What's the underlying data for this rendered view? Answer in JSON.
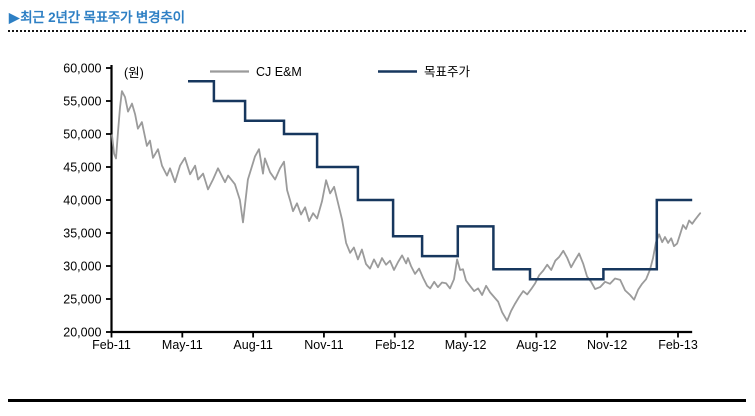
{
  "header": {
    "marker": "▶",
    "title": "최근 2년간 목표주가 변경추이"
  },
  "colors": {
    "title_blue": "#2d7fc4",
    "axis_black": "#000000",
    "price_gray": "#9b9b9b",
    "target_navy": "#17375e"
  },
  "chart_data": {
    "type": "line",
    "unit_label": "(원)",
    "ylim": [
      20000,
      60000
    ],
    "y_ticks": [
      20000,
      25000,
      30000,
      35000,
      40000,
      45000,
      50000,
      55000,
      60000
    ],
    "x_ticks": [
      0,
      3,
      6,
      9,
      12,
      15,
      18,
      21,
      24
    ],
    "x_tick_labels": [
      "Feb-11",
      "May-11",
      "Aug-11",
      "Nov-11",
      "Feb-12",
      "May-12",
      "Aug-12",
      "Nov-12",
      "Feb-13"
    ],
    "x_axis_end_month": 24.6,
    "grid": false,
    "legend_position": "top",
    "series": [
      {
        "name": "CJ E&M",
        "style": "line",
        "color": "#9b9b9b",
        "months": [
          0.02,
          0.11,
          0.19,
          0.28,
          0.36,
          0.44,
          0.57,
          0.7,
          0.87,
          1.0,
          1.12,
          1.29,
          1.5,
          1.63,
          1.76,
          1.97,
          2.14,
          2.35,
          2.48,
          2.69,
          2.9,
          3.11,
          3.33,
          3.54,
          3.67,
          3.88,
          4.09,
          4.3,
          4.51,
          4.81,
          4.94,
          5.23,
          5.44,
          5.57,
          5.78,
          6.08,
          6.25,
          6.42,
          6.5,
          6.72,
          6.93,
          7.14,
          7.31,
          7.44,
          7.57,
          7.69,
          7.86,
          8.03,
          8.2,
          8.37,
          8.54,
          8.71,
          8.92,
          9.09,
          9.26,
          9.43,
          9.6,
          9.77,
          9.94,
          10.11,
          10.27,
          10.44,
          10.61,
          10.78,
          10.95,
          11.12,
          11.29,
          11.46,
          11.63,
          11.8,
          11.97,
          12.14,
          12.31,
          12.48,
          12.56,
          12.69,
          12.86,
          13.03,
          13.2,
          13.37,
          13.5,
          13.67,
          13.83,
          14.0,
          14.17,
          14.34,
          14.51,
          14.64,
          14.77,
          14.89,
          15.02,
          15.19,
          15.36,
          15.53,
          15.7,
          15.87,
          16.04,
          16.21,
          16.38,
          16.55,
          16.76,
          16.93,
          17.1,
          17.27,
          17.44,
          17.61,
          17.78,
          17.95,
          18.12,
          18.29,
          18.46,
          18.63,
          18.8,
          18.97,
          19.14,
          19.31,
          19.47,
          19.64,
          19.81,
          19.98,
          20.15,
          20.32,
          20.49,
          20.7,
          20.91,
          21.12,
          21.33,
          21.55,
          21.76,
          21.97,
          22.14,
          22.31,
          22.48,
          22.65,
          22.82,
          22.94,
          23.07,
          23.2,
          23.33,
          23.45,
          23.58,
          23.71,
          23.83,
          23.96,
          24.09,
          24.21,
          24.34,
          24.47,
          24.6,
          24.72,
          24.85,
          24.94
        ],
        "values": [
          49800,
          47000,
          46300,
          50500,
          54000,
          56500,
          55600,
          53400,
          54600,
          53000,
          50800,
          51800,
          48200,
          49000,
          46400,
          47700,
          45200,
          43700,
          44800,
          42700,
          45200,
          46400,
          43900,
          45200,
          43100,
          44000,
          41600,
          43100,
          44800,
          42700,
          43700,
          42400,
          40000,
          36600,
          43100,
          46600,
          47700,
          44000,
          46300,
          44200,
          43100,
          44800,
          45800,
          41500,
          39900,
          38300,
          39500,
          37800,
          38900,
          36800,
          38000,
          37200,
          39800,
          43000,
          41000,
          42000,
          39500,
          37000,
          33500,
          32000,
          32800,
          31000,
          32500,
          30300,
          29600,
          31000,
          29800,
          31200,
          30200,
          30800,
          29400,
          30600,
          31600,
          30400,
          31200,
          30000,
          28800,
          29600,
          28200,
          27000,
          26600,
          27600,
          26800,
          27500,
          27400,
          26600,
          28000,
          31000,
          29400,
          29500,
          27800,
          27000,
          26200,
          26600,
          25600,
          27000,
          26000,
          25300,
          24600,
          23000,
          21700,
          23200,
          24300,
          25300,
          26200,
          25700,
          26500,
          27400,
          28600,
          29300,
          30200,
          29400,
          30800,
          31400,
          32300,
          31200,
          29800,
          30900,
          31900,
          30400,
          28400,
          27600,
          26500,
          26800,
          27600,
          27300,
          28100,
          27900,
          26300,
          25600,
          24900,
          26400,
          27300,
          28000,
          29500,
          31200,
          33600,
          34800,
          33600,
          34400,
          33500,
          34200,
          33000,
          33400,
          34800,
          36200,
          35600,
          36900,
          36400,
          37000,
          37600,
          38000
        ]
      },
      {
        "name": "목표주가",
        "style": "step",
        "color": "#17375e",
        "months": [
          3.24,
          4.34,
          5.66,
          7.31,
          8.71,
          10.44,
          11.93,
          13.16,
          14.67,
          16.18,
          17.73,
          20.84,
          23.1
        ],
        "values": [
          58000,
          55000,
          52000,
          50000,
          45000,
          40000,
          34500,
          31500,
          36000,
          29500,
          28000,
          29500,
          40000
        ],
        "end_month": 24.6
      }
    ]
  }
}
